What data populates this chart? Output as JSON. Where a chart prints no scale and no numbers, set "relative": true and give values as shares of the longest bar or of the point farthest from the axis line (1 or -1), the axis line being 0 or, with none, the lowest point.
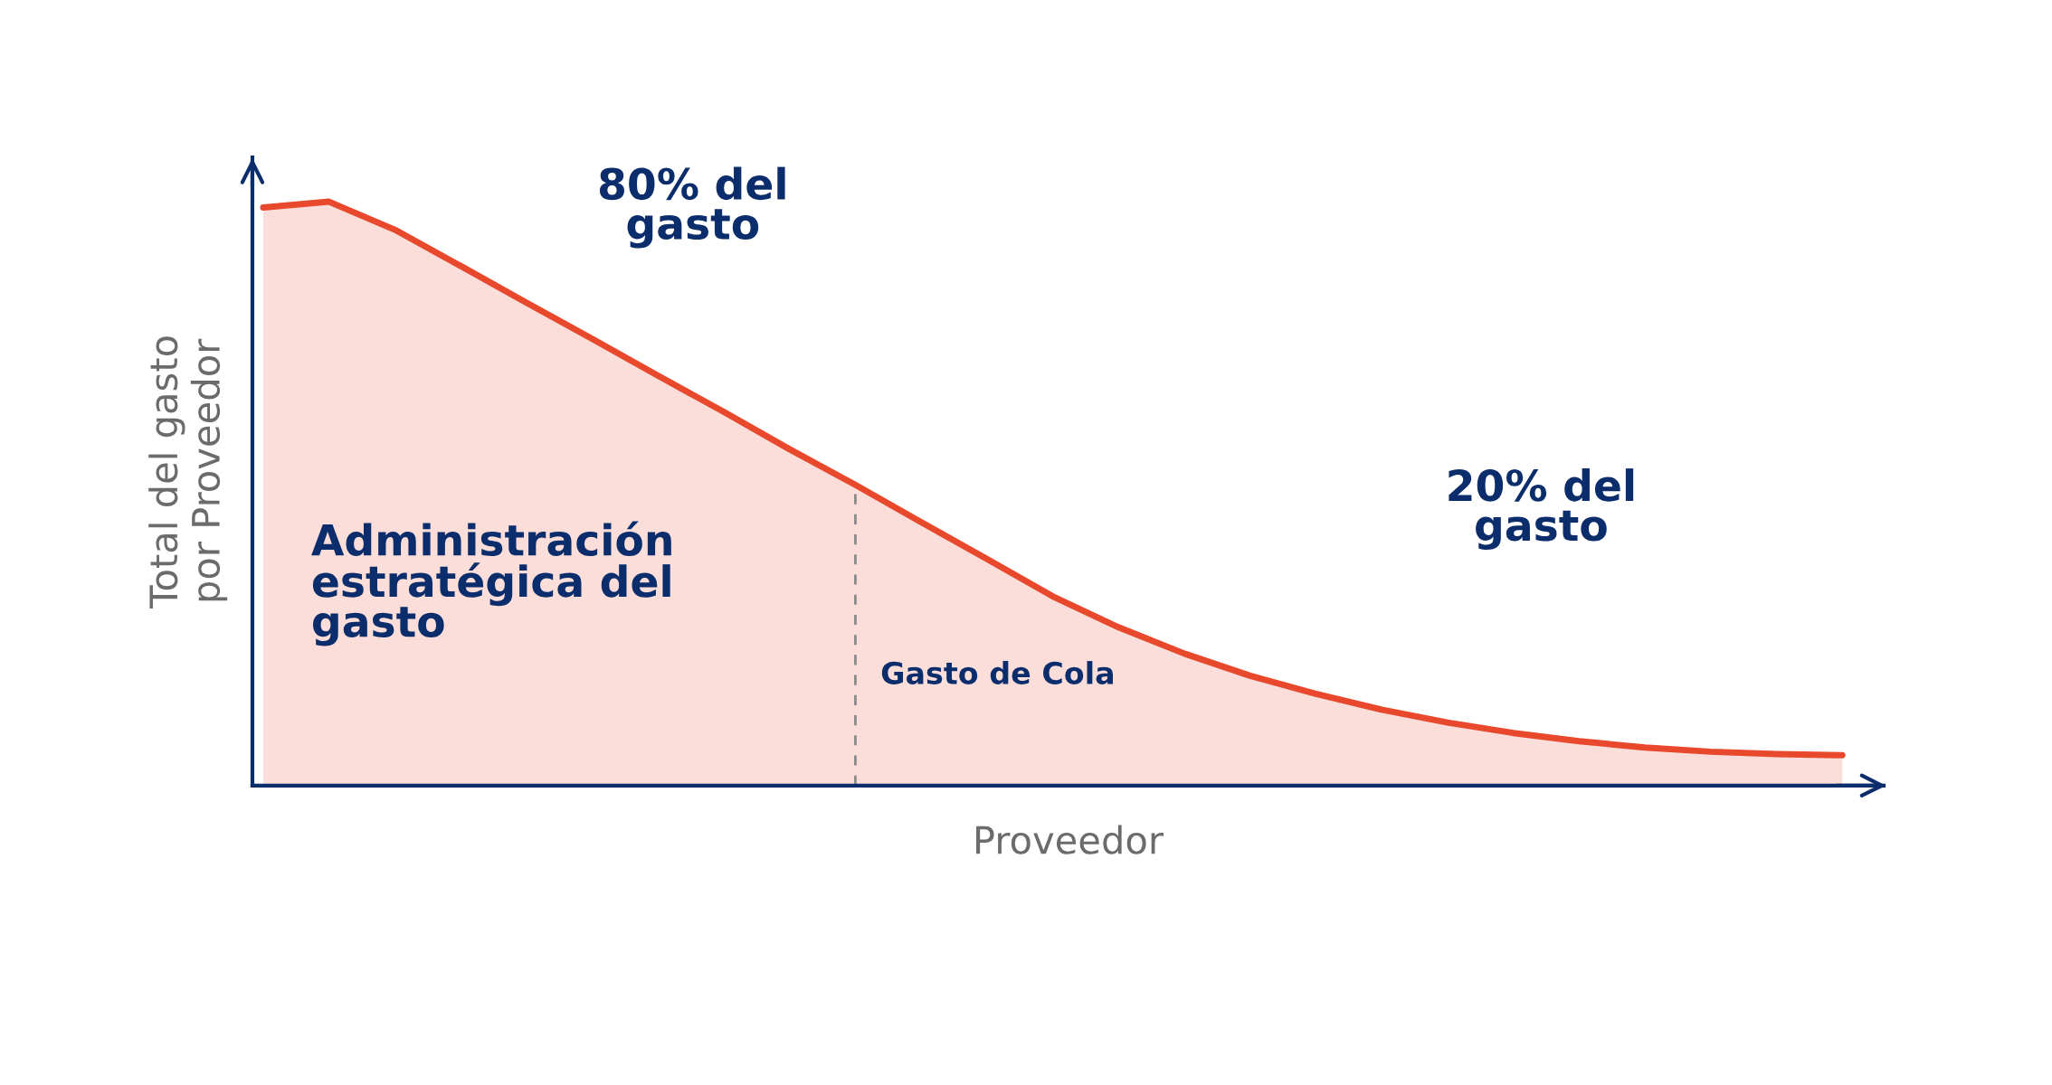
{
  "chart_data": {
    "type": "area",
    "relative": true,
    "xlabel": "Proveedor",
    "ylabel": "Total del gasto\npor Proveedor",
    "categories": [
      null,
      null,
      null,
      null,
      null,
      null,
      null,
      null,
      null,
      null,
      null,
      null,
      null,
      null,
      null,
      null,
      null,
      null,
      null,
      null,
      null,
      null,
      null,
      null,
      null
    ],
    "series": [
      {
        "color": "#e8482c",
        "values": [
          0.99,
          1.0,
          0.952,
          0.89,
          0.827,
          0.765,
          0.702,
          0.64,
          0.576,
          0.515,
          0.451,
          0.388,
          0.324,
          0.271,
          0.226,
          0.188,
          0.157,
          0.13,
          0.108,
          0.09,
          0.076,
          0.065,
          0.058,
          0.054,
          0.052
        ]
      }
    ],
    "annotations": [
      "80% del\ngasto",
      "20% del\ngasto",
      "Administración\nestratégica del\ngasto",
      "Gasto de Cola"
    ],
    "grid": false
  }
}
